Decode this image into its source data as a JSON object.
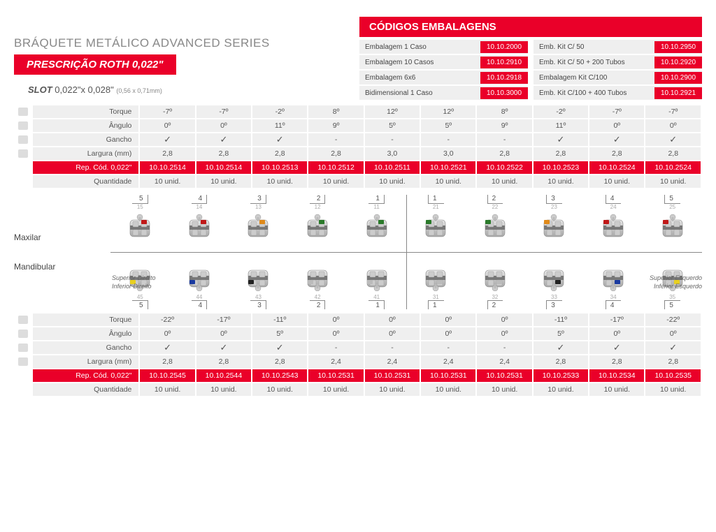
{
  "colors": {
    "brand": "#ea0029",
    "grey": "#efefef",
    "text": "#555"
  },
  "header": {
    "title": "BRÁQUETE METÁLICO ADVANCED SERIES",
    "prescription": "PRESCRIÇÃO ROTH 0,022\"",
    "slot_label": "SLOT",
    "slot_value": "0,022\"x 0,028\"",
    "slot_mm": "(0,56 x 0,71mm)"
  },
  "codes": {
    "title": "CÓDIGOS EMBALAGENS",
    "items": [
      {
        "label": "Embalagem 1 Caso",
        "code": "10.10.2000"
      },
      {
        "label": "Emb. Kit C/ 50",
        "code": "10.10.2950"
      },
      {
        "label": "Embalagem 10 Casos",
        "code": "10.10.2910"
      },
      {
        "label": "Emb. Kit C/ 50 + 200 Tubos",
        "code": "10.10.2920"
      },
      {
        "label": "Embalagem 6x6",
        "code": "10.10.2918"
      },
      {
        "label": "Embalagem Kit C/100",
        "code": "10.10.2900"
      },
      {
        "label": "Bidimensional 1 Caso",
        "code": "10.10.3000"
      },
      {
        "label": "Emb. Kit C/100 + 400 Tubos",
        "code": "10.10.2921"
      }
    ]
  },
  "spec_rows_upper": {
    "labels": [
      "Torque",
      "Ângulo",
      "Gancho",
      "Largura (mm)",
      "Rep. Cód. 0,022\"",
      "Quantidade"
    ],
    "data": [
      [
        "-7º",
        "-7º",
        "-2º",
        "8º",
        "12º",
        "12º",
        "8º",
        "-2º",
        "-7º",
        "-7º"
      ],
      [
        "0º",
        "0º",
        "11º",
        "9º",
        "5º",
        "5º",
        "9º",
        "11º",
        "0º",
        "0º"
      ],
      [
        "✓",
        "✓",
        "✓",
        "-",
        "-",
        "-",
        "-",
        "✓",
        "✓",
        "✓"
      ],
      [
        "2,8",
        "2,8",
        "2,8",
        "2,8",
        "3,0",
        "3,0",
        "2,8",
        "2,8",
        "2,8",
        "2,8"
      ],
      [
        "10.10.2514",
        "10.10.2514",
        "10.10.2513",
        "10.10.2512",
        "10.10.2511",
        "10.10.2521",
        "10.10.2522",
        "10.10.2523",
        "10.10.2524",
        "10.10.2524"
      ],
      [
        "10 unid.",
        "10 unid.",
        "10 unid.",
        "10 unid.",
        "10 unid.",
        "10 unid.",
        "10 unid.",
        "10 unid.",
        "10 unid.",
        "10 unid."
      ]
    ]
  },
  "spec_rows_lower": {
    "labels": [
      "Torque",
      "Ângulo",
      "Gancho",
      "Largura (mm)",
      "Rep. Cód. 0,022\"",
      "Quantidade"
    ],
    "data": [
      [
        "-22º",
        "-17º",
        "-11º",
        "0º",
        "0º",
        "0º",
        "0º",
        "-11º",
        "-17º",
        "-22º"
      ],
      [
        "0º",
        "0º",
        "5º",
        "0º",
        "0º",
        "0º",
        "0º",
        "5º",
        "0º",
        "0º"
      ],
      [
        "✓",
        "✓",
        "✓",
        "-",
        "-",
        "-",
        "-",
        "✓",
        "✓",
        "✓"
      ],
      [
        "2,8",
        "2,8",
        "2,8",
        "2,4",
        "2,4",
        "2,4",
        "2,4",
        "2,8",
        "2,8",
        "2,8"
      ],
      [
        "10.10.2545",
        "10.10.2544",
        "10.10.2543",
        "10.10.2531",
        "10.10.2531",
        "10.10.2531",
        "10.10.2531",
        "10.10.2533",
        "10.10.2534",
        "10.10.2535"
      ],
      [
        "10 unid.",
        "10 unid.",
        "10 unid.",
        "10 unid.",
        "10 unid.",
        "10 unid.",
        "10 unid.",
        "10 unid.",
        "10 unid.",
        "10 unid."
      ]
    ]
  },
  "mid": {
    "maxilar": "Maxilar",
    "mandibular": "Mandibular",
    "sup_dir": "Superior Direito",
    "inf_dir": "Inferior Direito",
    "sup_esq": "Superior Esquerdo",
    "inf_esq": "Inferior Esquerdo",
    "upper_nums": [
      {
        "big": "5",
        "small": "15"
      },
      {
        "big": "4",
        "small": "14"
      },
      {
        "big": "3",
        "small": "13"
      },
      {
        "big": "2",
        "small": "12"
      },
      {
        "big": "1",
        "small": "11"
      },
      {
        "big": "1",
        "small": "21"
      },
      {
        "big": "2",
        "small": "22"
      },
      {
        "big": "3",
        "small": "23"
      },
      {
        "big": "4",
        "small": "24"
      },
      {
        "big": "5",
        "small": "25"
      }
    ],
    "lower_nums": [
      {
        "small": "45",
        "big": "5"
      },
      {
        "small": "44",
        "big": "4"
      },
      {
        "small": "43",
        "big": "3"
      },
      {
        "small": "42",
        "big": "2"
      },
      {
        "small": "41",
        "big": "1"
      },
      {
        "small": "31",
        "big": "1"
      },
      {
        "small": "32",
        "big": "2"
      },
      {
        "small": "33",
        "big": "3"
      },
      {
        "small": "34",
        "big": "4"
      },
      {
        "small": "35",
        "big": "5"
      }
    ],
    "upper_markers": [
      "#c01818",
      "#c01818",
      "#e08a1a",
      "#2a7a2a",
      "#2a7a2a",
      "#2a7a2a",
      "#2a7a2a",
      "#e08a1a",
      "#c01818",
      "#c01818"
    ],
    "lower_markers": [
      "#e8d020",
      "#1a3aa0",
      "#222",
      "#bbb",
      "#bbb",
      "#bbb",
      "#bbb",
      "#222",
      "#1a3aa0",
      "#e8d020"
    ]
  }
}
